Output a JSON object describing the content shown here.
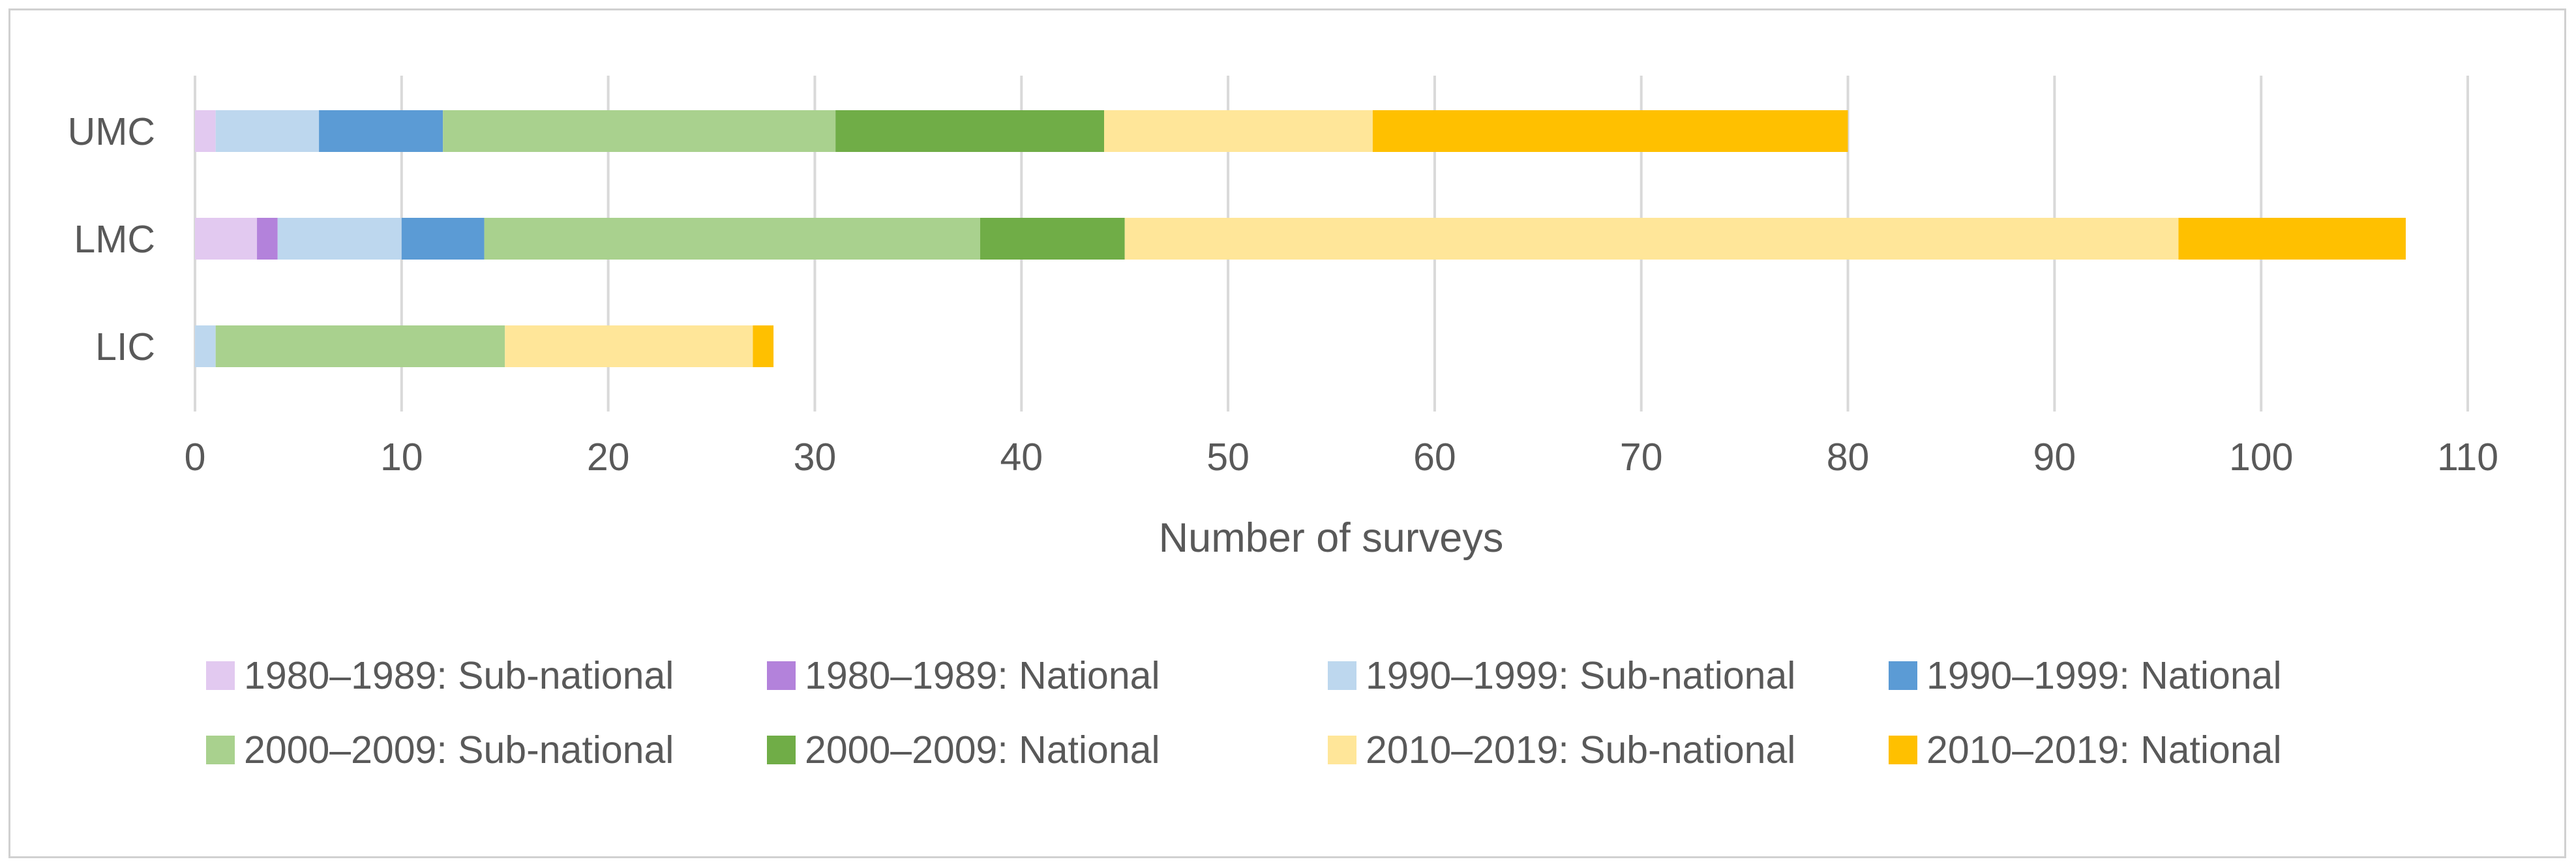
{
  "chart_data": {
    "type": "bar",
    "orientation": "horizontal",
    "stacked": true,
    "categories": [
      "UMC",
      "LMC",
      "LIC"
    ],
    "xlabel": "Number of surveys",
    "xlim": [
      0,
      110
    ],
    "xticks": [
      0,
      10,
      20,
      30,
      40,
      50,
      60,
      70,
      80,
      90,
      100,
      110
    ],
    "grid": "vertical",
    "legend_position": "bottom",
    "series": [
      {
        "name": "1980–1989: Sub-national",
        "color": "#e2c9f0",
        "values": [
          1,
          3,
          0
        ]
      },
      {
        "name": "1980–1989: National",
        "color": "#b382db",
        "values": [
          0,
          1,
          0
        ]
      },
      {
        "name": "1990–1999: Sub-national",
        "color": "#bdd7ee",
        "values": [
          5,
          6,
          1
        ]
      },
      {
        "name": "1990–1999: National",
        "color": "#5b9bd5",
        "values": [
          6,
          4,
          0
        ]
      },
      {
        "name": "2000–2009: Sub-national",
        "color": "#a9d18e",
        "values": [
          19,
          24,
          14
        ]
      },
      {
        "name": "2000–2009: National",
        "color": "#70ad47",
        "values": [
          13,
          7,
          0
        ]
      },
      {
        "name": "2010–2019: Sub-national",
        "color": "#ffe699",
        "values": [
          13,
          51,
          12
        ]
      },
      {
        "name": "2010–2019: National",
        "color": "#ffc000",
        "values": [
          23,
          11,
          1
        ]
      }
    ]
  }
}
